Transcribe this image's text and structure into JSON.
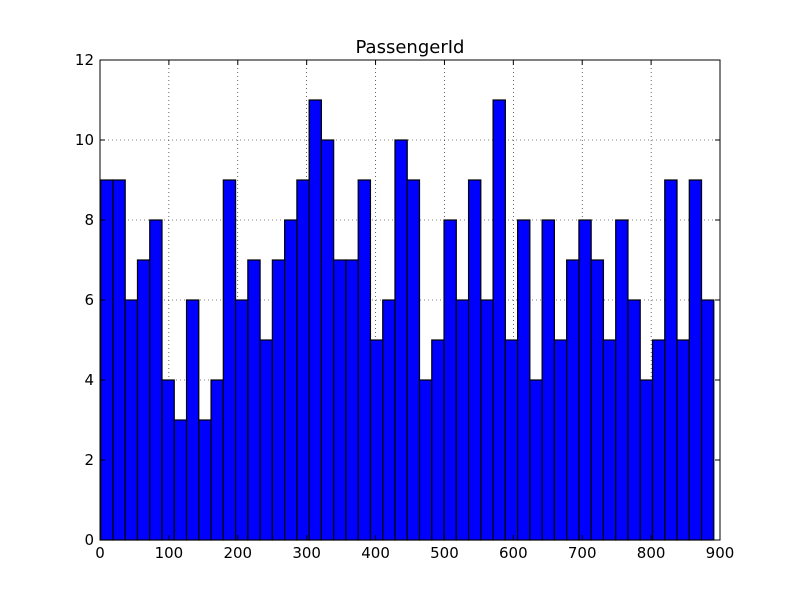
{
  "chart_data": {
    "type": "bar",
    "title": "PassengerId",
    "xlabel": "",
    "ylabel": "",
    "xlim": [
      0,
      900
    ],
    "ylim": [
      0,
      12
    ],
    "x_ticks": [
      0,
      100,
      200,
      300,
      400,
      500,
      600,
      700,
      800,
      900
    ],
    "y_ticks": [
      0,
      2,
      4,
      6,
      8,
      10,
      12
    ],
    "grid": true,
    "bar_color": "#0000ff",
    "bin_start": 1,
    "bin_end": 891,
    "bin_count": 50,
    "values": [
      9,
      9,
      6,
      7,
      8,
      4,
      3,
      6,
      3,
      4,
      9,
      6,
      7,
      5,
      7,
      8,
      9,
      11,
      10,
      7,
      7,
      9,
      5,
      6,
      10,
      9,
      4,
      5,
      8,
      6,
      9,
      6,
      11,
      5,
      8,
      4,
      8,
      5,
      7,
      8,
      7,
      5,
      8,
      6,
      4,
      5,
      9,
      5,
      9,
      6
    ]
  }
}
